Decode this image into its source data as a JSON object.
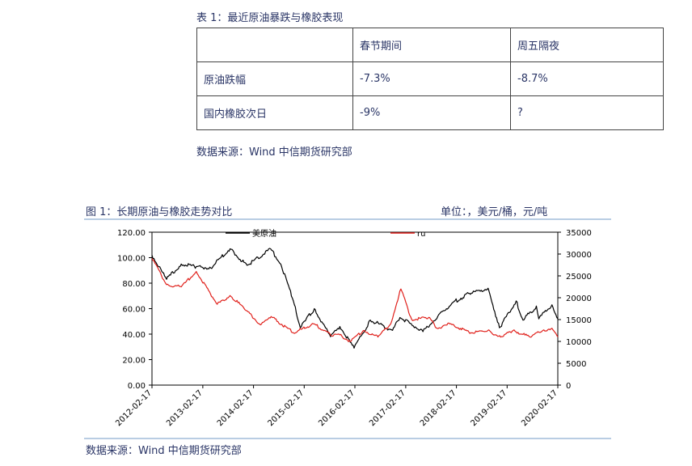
{
  "table1": {
    "caption": "表 1：最近原油暴跌与橡胶表现",
    "header": [
      "",
      "春节期间",
      "周五隔夜"
    ],
    "rows": [
      [
        "原油跌幅",
        "-7.3%",
        "-8.7%"
      ],
      [
        "国内橡胶次日",
        "-9%",
        "?"
      ]
    ],
    "source": "数据来源：Wind  中信期货研究部"
  },
  "figure1": {
    "caption": "图 1：长期原油与橡胶走势对比",
    "unit": "单位：，美元/桶，元/吨",
    "source": "数据来源：Wind  中信期货研究部"
  },
  "chart_data": {
    "type": "line",
    "title": "",
    "xlabel": "",
    "ylabel": "",
    "x_ticks": [
      "2012-02-17",
      "2013-02-17",
      "2014-02-17",
      "2015-02-17",
      "2016-02-17",
      "2017-02-17",
      "2018-02-17",
      "2019-02-17",
      "2020-02-17"
    ],
    "left_axis": {
      "range": [
        0,
        120
      ],
      "ticks": [
        "0.00",
        "20.00",
        "40.00",
        "60.00",
        "80.00",
        "100.00",
        "120.00"
      ]
    },
    "right_axis": {
      "range": [
        0,
        35000
      ],
      "ticks": [
        "0",
        "5000",
        "10000",
        "15000",
        "20000",
        "25000",
        "30000",
        "35000"
      ]
    },
    "legend_position": "top",
    "colors": {
      "oil": "#000000",
      "ru": "#e0201b"
    },
    "series": [
      {
        "name": "美原油",
        "axis": "left",
        "x": [
          "2012-02-17",
          "2012-06-01",
          "2012-09-15",
          "2013-01-01",
          "2013-04-15",
          "2013-09-01",
          "2014-01-01",
          "2014-06-20",
          "2014-09-01",
          "2014-12-01",
          "2015-01-20",
          "2015-05-01",
          "2015-08-25",
          "2015-11-01",
          "2016-02-11",
          "2016-06-08",
          "2016-11-14",
          "2017-01-06",
          "2017-06-21",
          "2017-09-01",
          "2018-01-25",
          "2018-05-22",
          "2018-10-03",
          "2018-12-24",
          "2019-04-23",
          "2019-06-12",
          "2019-09-16",
          "2019-10-03",
          "2020-01-06",
          "2020-02-17"
        ],
        "y": [
          102,
          83,
          95,
          93,
          92,
          107,
          94,
          107,
          95,
          66,
          45,
          60,
          38,
          46,
          29,
          51,
          43,
          53,
          42,
          50,
          65,
          72,
          76,
          45,
          66,
          51,
          62,
          52,
          63,
          52
        ]
      },
      {
        "name": "ru",
        "axis": "right",
        "x": [
          "2012-02-17",
          "2012-06-01",
          "2012-09-15",
          "2013-01-01",
          "2013-06-01",
          "2013-09-01",
          "2014-01-01",
          "2014-04-01",
          "2014-07-01",
          "2014-12-01",
          "2015-05-01",
          "2015-08-25",
          "2015-11-01",
          "2016-01-15",
          "2016-04-20",
          "2016-08-01",
          "2016-11-01",
          "2017-01-13",
          "2017-04-01",
          "2017-08-01",
          "2017-10-01",
          "2018-01-01",
          "2018-06-01",
          "2018-10-01",
          "2019-01-01",
          "2019-04-01",
          "2019-08-01",
          "2019-11-01",
          "2020-01-06",
          "2020-02-17"
        ],
        "y": [
          29000,
          23000,
          22500,
          26000,
          18500,
          20500,
          17000,
          14000,
          15500,
          12000,
          14000,
          11500,
          11500,
          10000,
          12500,
          11000,
          14000,
          22000,
          15000,
          15500,
          13000,
          14000,
          12000,
          12500,
          11000,
          12500,
          11000,
          12500,
          13000,
          11000
        ]
      }
    ]
  }
}
